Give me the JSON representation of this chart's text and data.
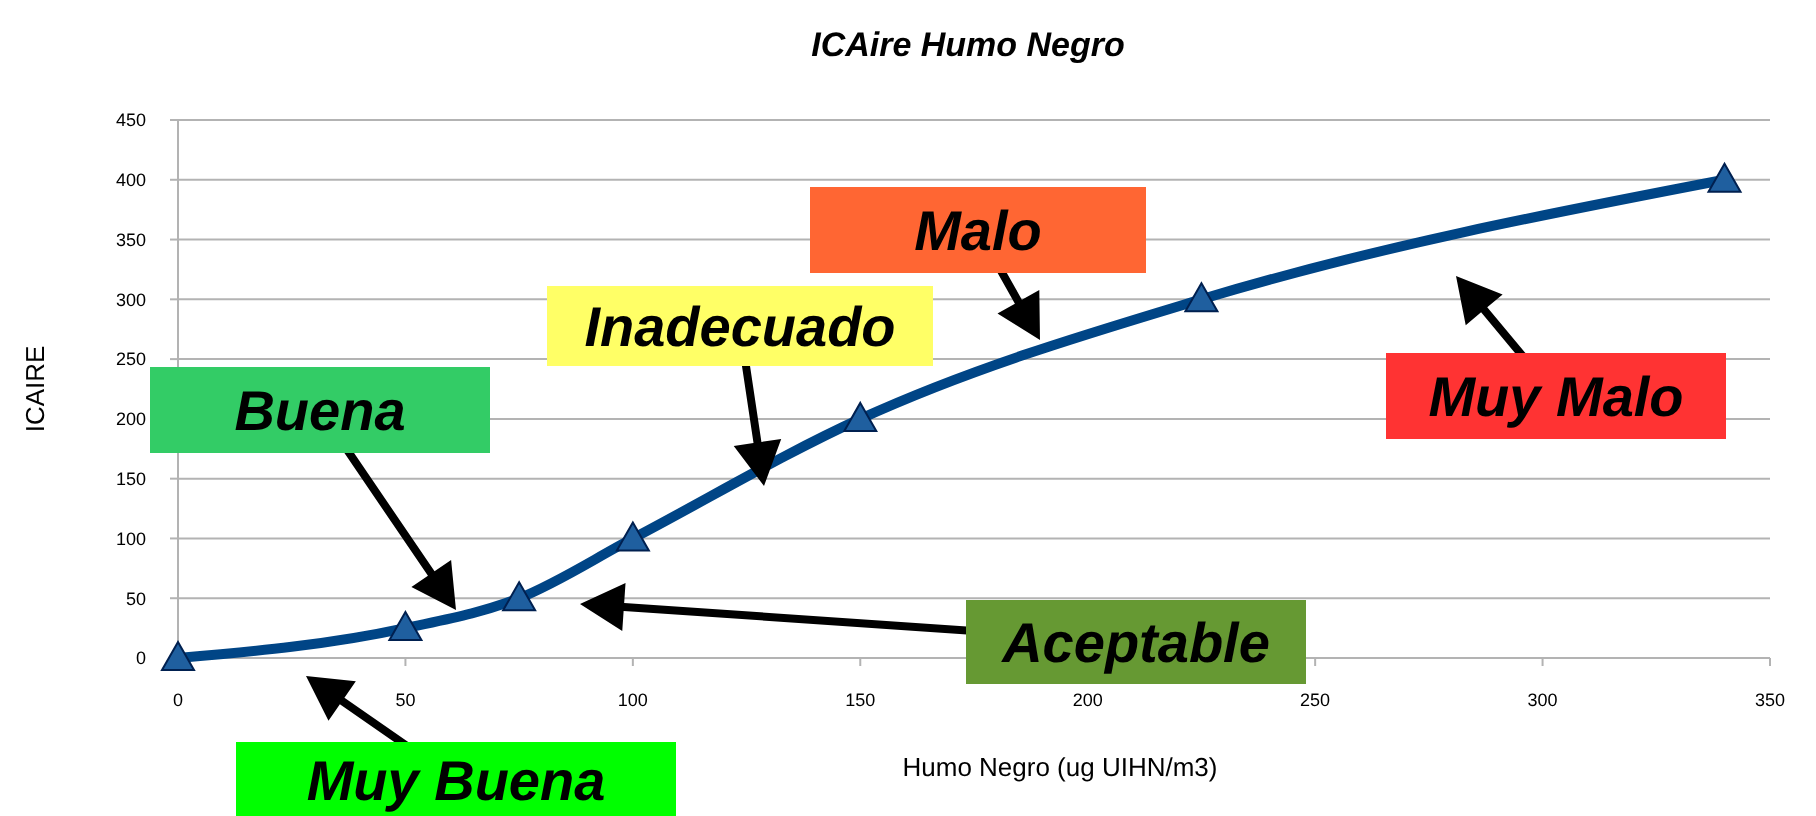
{
  "chart_data": {
    "type": "line",
    "title": "ICAire Humo Negro",
    "xlabel": "Humo Negro  (ug UIHN/m3)",
    "ylabel": "ICAIRE",
    "x": [
      0,
      50,
      75,
      100,
      150,
      225,
      340
    ],
    "series": [
      {
        "color": "#004586",
        "values": [
          0,
          25,
          50,
          100,
          200,
          300,
          400
        ]
      }
    ],
    "xlim": [
      0,
      350
    ],
    "xticks": [
      0,
      50,
      100,
      150,
      200,
      250,
      300,
      350
    ],
    "ylim": [
      0,
      450
    ],
    "yticks": [
      0,
      50,
      100,
      150,
      200,
      250,
      300,
      350,
      400,
      450
    ],
    "grid": "y",
    "marker": "triangle",
    "line_style": "solid",
    "annotations": [
      "Buena",
      "Muy Buena",
      "Aceptable",
      "Inadecuado",
      "Malo",
      "Muy Malo"
    ]
  }
}
